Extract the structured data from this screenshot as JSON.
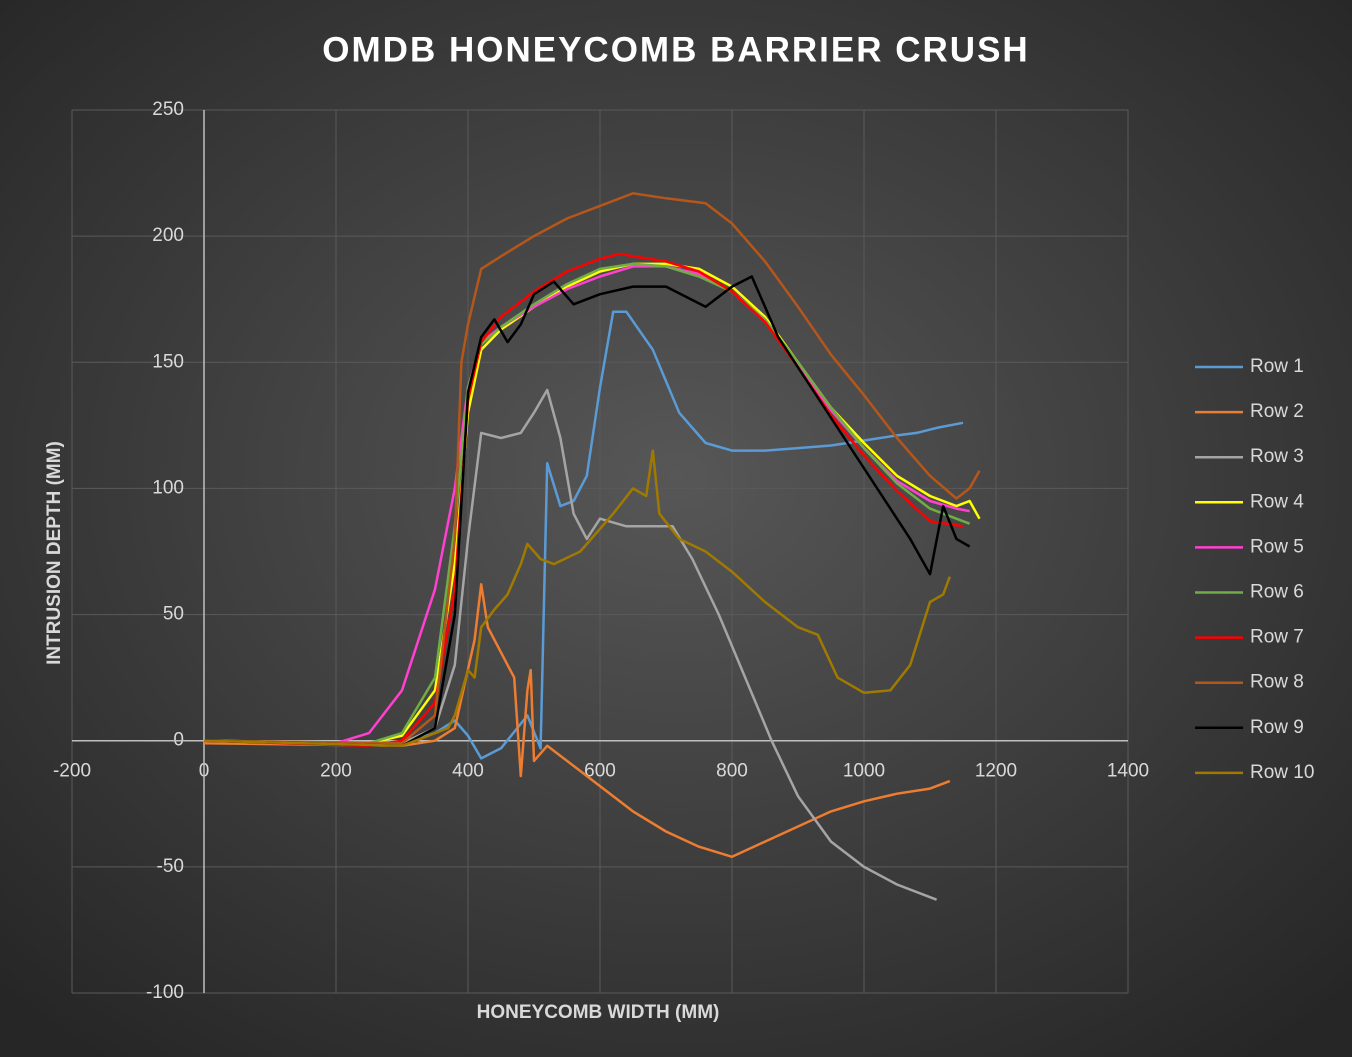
{
  "chart_data": {
    "type": "line",
    "title": "OMDB HONEYCOMB BARRIER CRUSH",
    "x_label": "HONEYCOMB WIDTH (MM)",
    "y_label": "INTRUSION DEPTH (MM)",
    "xlim": [
      -200,
      1400
    ],
    "xticks": [
      -200,
      0,
      200,
      400,
      600,
      800,
      1000,
      1200,
      1400
    ],
    "ylim": [
      -100,
      250
    ],
    "yticks": [
      -100,
      -50,
      0,
      50,
      100,
      150,
      200,
      250
    ],
    "grid": true,
    "legend": "right",
    "series": [
      {
        "name": "Row 1",
        "color": "#5b9bd5",
        "x": [
          0,
          300,
          350,
          380,
          400,
          420,
          450,
          490,
          510,
          520,
          540,
          560,
          580,
          600,
          620,
          640,
          680,
          720,
          760,
          800,
          850,
          900,
          950,
          1000,
          1050,
          1080,
          1110,
          1150
        ],
        "values": [
          0,
          -1,
          3,
          8,
          2,
          -7,
          -3,
          10,
          -3,
          110,
          93,
          95,
          105,
          140,
          170,
          170,
          155,
          130,
          118,
          115,
          115,
          116,
          117,
          119,
          121,
          122,
          124,
          126
        ]
      },
      {
        "name": "Row 2",
        "color": "#ed7d31",
        "x": [
          0,
          300,
          350,
          380,
          410,
          420,
          430,
          450,
          470,
          480,
          490,
          495,
          500,
          520,
          560,
          600,
          650,
          700,
          750,
          800,
          850,
          900,
          950,
          1000,
          1050,
          1100,
          1130
        ],
        "values": [
          -1,
          -2,
          0,
          5,
          40,
          62,
          45,
          35,
          25,
          -14,
          20,
          28,
          -8,
          -2,
          -10,
          -18,
          -28,
          -36,
          -42,
          -46,
          -40,
          -34,
          -28,
          -24,
          -21,
          -19,
          -16
        ]
      },
      {
        "name": "Row 3",
        "color": "#a5a5a5",
        "x": [
          0,
          300,
          350,
          380,
          400,
          420,
          450,
          480,
          500,
          520,
          540,
          560,
          580,
          600,
          640,
          680,
          710,
          740,
          780,
          820,
          860,
          900,
          950,
          1000,
          1050,
          1110
        ],
        "values": [
          0,
          -1,
          5,
          30,
          80,
          122,
          120,
          122,
          130,
          139,
          120,
          90,
          80,
          88,
          85,
          85,
          85,
          72,
          50,
          25,
          0,
          -22,
          -40,
          -50,
          -57,
          -63
        ]
      },
      {
        "name": "Row 4",
        "color": "#ffff00",
        "x": [
          0,
          250,
          300,
          350,
          380,
          400,
          420,
          450,
          500,
          550,
          600,
          650,
          700,
          750,
          800,
          850,
          900,
          950,
          1000,
          1050,
          1100,
          1140,
          1160,
          1175
        ],
        "values": [
          0,
          -1,
          2,
          20,
          70,
          130,
          155,
          163,
          172,
          180,
          186,
          189,
          189,
          187,
          180,
          168,
          150,
          132,
          118,
          105,
          97,
          93,
          95,
          88
        ]
      },
      {
        "name": "Row 5",
        "color": "#ff40d0",
        "x": [
          0,
          200,
          250,
          300,
          350,
          380,
          400,
          420,
          450,
          500,
          550,
          600,
          650,
          700,
          750,
          800,
          850,
          900,
          950,
          1000,
          1050,
          1100,
          1140,
          1160
        ],
        "values": [
          0,
          -1,
          3,
          20,
          60,
          100,
          140,
          158,
          164,
          172,
          179,
          184,
          188,
          188,
          185,
          178,
          166,
          149,
          131,
          116,
          103,
          95,
          92,
          91
        ]
      },
      {
        "name": "Row 6",
        "color": "#70ad47",
        "x": [
          0,
          250,
          300,
          350,
          380,
          400,
          420,
          450,
          500,
          550,
          600,
          650,
          700,
          750,
          800,
          850,
          900,
          950,
          1000,
          1050,
          1100,
          1140,
          1160
        ],
        "values": [
          0,
          -1,
          3,
          25,
          85,
          140,
          157,
          164,
          173,
          181,
          187,
          189,
          188,
          184,
          178,
          167,
          150,
          132,
          116,
          102,
          92,
          88,
          86
        ]
      },
      {
        "name": "Row 7",
        "color": "#ff0000",
        "x": [
          0,
          250,
          300,
          350,
          380,
          400,
          420,
          450,
          500,
          550,
          600,
          630,
          650,
          700,
          750,
          800,
          850,
          900,
          950,
          1000,
          1050,
          1100,
          1150
        ],
        "values": [
          0,
          -2,
          0,
          15,
          60,
          135,
          158,
          168,
          178,
          186,
          191,
          193,
          192,
          190,
          186,
          178,
          166,
          148,
          129,
          113,
          99,
          87,
          85
        ]
      },
      {
        "name": "Row 8",
        "color": "#b5561a",
        "x": [
          0,
          300,
          350,
          380,
          390,
          400,
          420,
          450,
          500,
          550,
          600,
          650,
          700,
          760,
          800,
          850,
          900,
          950,
          1000,
          1050,
          1100,
          1140,
          1160,
          1175
        ],
        "values": [
          0,
          -1,
          10,
          80,
          150,
          165,
          187,
          192,
          200,
          207,
          212,
          217,
          215,
          213,
          205,
          190,
          172,
          153,
          137,
          120,
          105,
          96,
          100,
          107
        ]
      },
      {
        "name": "Row 9",
        "color": "#000000",
        "x": [
          0,
          300,
          350,
          380,
          400,
          420,
          440,
          460,
          480,
          500,
          530,
          560,
          600,
          650,
          700,
          760,
          800,
          830,
          870,
          920,
          970,
          1020,
          1070,
          1100,
          1120,
          1140,
          1160
        ],
        "values": [
          0,
          -2,
          5,
          50,
          138,
          160,
          167,
          158,
          165,
          177,
          182,
          173,
          177,
          180,
          180,
          172,
          180,
          184,
          160,
          140,
          120,
          100,
          80,
          66,
          93,
          80,
          77
        ]
      },
      {
        "name": "Row 10",
        "color": "#a07a00",
        "x": [
          0,
          300,
          340,
          370,
          380,
          400,
          410,
          420,
          440,
          460,
          480,
          490,
          510,
          530,
          570,
          620,
          650,
          670,
          680,
          690,
          720,
          760,
          800,
          850,
          900,
          930,
          960,
          1000,
          1040,
          1070,
          1100,
          1120,
          1130
        ],
        "values": [
          0,
          -2,
          2,
          5,
          10,
          28,
          25,
          45,
          52,
          58,
          70,
          78,
          72,
          70,
          75,
          90,
          100,
          97,
          115,
          90,
          80,
          75,
          67,
          55,
          45,
          42,
          25,
          19,
          20,
          30,
          55,
          58,
          65
        ]
      }
    ]
  }
}
